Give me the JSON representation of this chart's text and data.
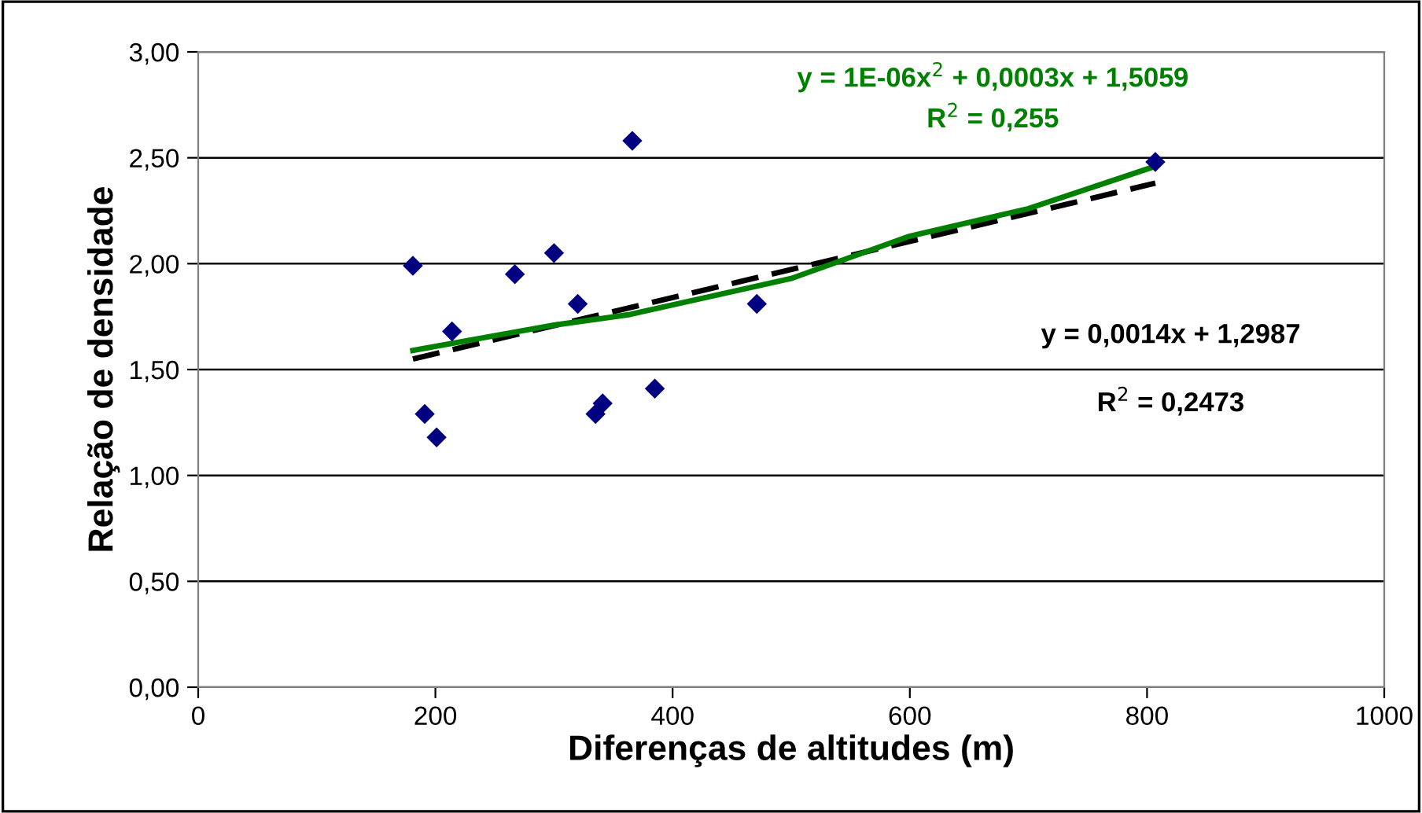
{
  "chart_data": {
    "type": "scatter",
    "xlabel": "Diferenças de altitudes (m)",
    "ylabel": "Relação de densidade",
    "xlim": [
      0,
      1000
    ],
    "xticks": [
      0,
      200,
      400,
      600,
      800,
      1000
    ],
    "ylim": [
      0,
      3
    ],
    "yticks": [
      {
        "value": 0,
        "label": "0,00"
      },
      {
        "value": 0.5,
        "label": "0,50"
      },
      {
        "value": 1,
        "label": "1,00"
      },
      {
        "value": 1.5,
        "label": "1,50"
      },
      {
        "value": 2,
        "label": "2,00"
      },
      {
        "value": 2.5,
        "label": "2,50"
      },
      {
        "value": 3,
        "label": "3,00"
      }
    ],
    "grid": "y",
    "marker": "diamond",
    "series": [
      {
        "color": "#000080",
        "x": [
          181,
          191,
          201,
          214,
          267,
          300,
          320,
          335,
          341,
          366,
          385,
          471,
          807
        ],
        "values": [
          1.99,
          1.29,
          1.18,
          1.68,
          1.95,
          2.05,
          1.81,
          1.29,
          1.34,
          2.58,
          1.41,
          1.81,
          2.48
        ]
      },
      {
        "type": "line",
        "color": "#000000",
        "line_style": "dashed",
        "marker": "none",
        "x": [
          181,
          807
        ],
        "values": [
          1.55,
          2.38
        ]
      },
      {
        "type": "line",
        "color": "#008000",
        "line_style": "solid",
        "marker": "none",
        "x": [
          181,
          300,
          364,
          500,
          600,
          700,
          807
        ],
        "values": [
          1.59,
          1.71,
          1.76,
          1.93,
          2.13,
          2.26,
          2.46
        ]
      }
    ],
    "annotations": [
      "y = 1E-06x$^{2}$ + 0,0003x + 1,5059",
      "R$^{2}$ = 0,255",
      "y = 0,0014x + 1,2987",
      "R$^{2}$ = 0,2473"
    ]
  }
}
